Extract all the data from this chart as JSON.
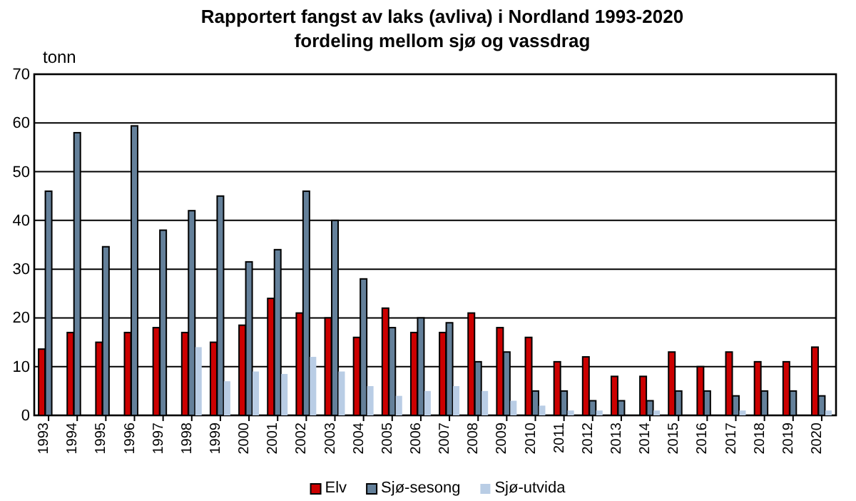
{
  "chart_data": {
    "type": "bar",
    "title": "Rapportert fangst av laks (avliva) i Nordland 1993-2020\nfordeling mellom sjø og vassdrag",
    "ylabel": "tonn",
    "categories": [
      "1993",
      "1994",
      "1995",
      "1996",
      "1997",
      "1998",
      "1999",
      "2000",
      "2001",
      "2002",
      "2003",
      "2004",
      "2005",
      "2006",
      "2007",
      "2008",
      "2009",
      "2010",
      "2011",
      "2012",
      "2013",
      "2014",
      "2015",
      "2016",
      "2017",
      "2018",
      "2019",
      "2020"
    ],
    "series": [
      {
        "name": "Elv",
        "color": "#cc0000",
        "values": [
          13.6,
          17,
          15,
          17,
          18,
          17,
          15,
          18.5,
          24,
          21,
          20,
          16,
          22,
          17,
          17,
          21,
          18,
          16,
          11,
          12,
          8,
          8,
          13,
          10,
          13,
          11,
          11,
          14
        ]
      },
      {
        "name": "Sjø-sesong",
        "color": "#64809a",
        "values": [
          46,
          58,
          34.6,
          59.4,
          38,
          42,
          45,
          31.5,
          34,
          46,
          40,
          28,
          18,
          20,
          19,
          11,
          13,
          5,
          5,
          3,
          3,
          3,
          5,
          5,
          4,
          5,
          5,
          4
        ]
      },
      {
        "name": "Sjø-utvida",
        "color": "#b9cde5",
        "values": [
          null,
          null,
          null,
          null,
          null,
          14,
          7,
          9,
          8.5,
          12,
          9,
          6,
          4,
          5,
          6,
          5,
          3,
          2,
          1,
          1,
          0,
          1,
          0,
          0,
          1,
          0,
          0,
          1
        ]
      }
    ],
    "ylim": [
      0,
      70
    ],
    "yticks": [
      0,
      10,
      20,
      30,
      40,
      50,
      60,
      70
    ],
    "grid": "y",
    "legend": "bottom"
  }
}
